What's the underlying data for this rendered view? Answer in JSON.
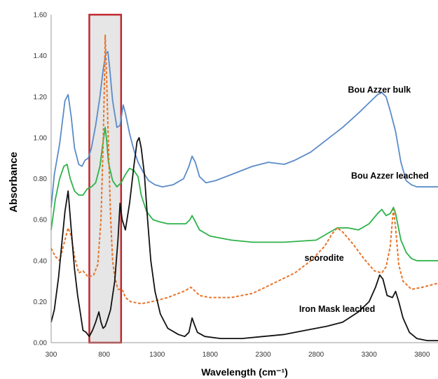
{
  "chart_data": {
    "type": "line",
    "xlabel": "Wavelength (cm⁻¹)",
    "ylabel": "Absorbance",
    "xlim": [
      300,
      3950
    ],
    "ylim": [
      0,
      1.6
    ],
    "x_ticks": [
      300,
      800,
      1300,
      1800,
      2300,
      2800,
      3300,
      3800
    ],
    "y_ticks": [
      0,
      0.2,
      0.4,
      0.6,
      0.8,
      1.0,
      1.2,
      1.4,
      1.6
    ],
    "x_tick_labels": [
      "300",
      "800",
      "1300",
      "1800",
      "2300",
      "2800",
      "3300",
      "3800"
    ],
    "y_tick_labels": [
      "0.00",
      "0.20",
      "0.40",
      "0.60",
      "0.80",
      "1.00",
      "1.20",
      "1.40",
      "1.60"
    ],
    "grid": false,
    "highlight_region": {
      "x_range": [
        660,
        960
      ],
      "y_range": [
        0,
        1.6
      ],
      "border_color": "#c0282d",
      "fill_color": "#e6e6e6"
    },
    "series": [
      {
        "name": "Bou Azzer bulk",
        "color": "#5b8bc9",
        "dashed": false,
        "points": [
          [
            300,
            0.66
          ],
          [
            330,
            0.82
          ],
          [
            380,
            0.97
          ],
          [
            430,
            1.18
          ],
          [
            460,
            1.21
          ],
          [
            490,
            1.1
          ],
          [
            520,
            0.95
          ],
          [
            560,
            0.87
          ],
          [
            590,
            0.86
          ],
          [
            620,
            0.89
          ],
          [
            650,
            0.9
          ],
          [
            680,
            0.95
          ],
          [
            720,
            1.06
          ],
          [
            760,
            1.2
          ],
          [
            790,
            1.33
          ],
          [
            815,
            1.41
          ],
          [
            835,
            1.42
          ],
          [
            850,
            1.35
          ],
          [
            880,
            1.18
          ],
          [
            920,
            1.05
          ],
          [
            950,
            1.06
          ],
          [
            980,
            1.16
          ],
          [
            1000,
            1.12
          ],
          [
            1040,
            1.02
          ],
          [
            1080,
            0.94
          ],
          [
            1120,
            0.88
          ],
          [
            1170,
            0.83
          ],
          [
            1220,
            0.79
          ],
          [
            1280,
            0.77
          ],
          [
            1350,
            0.76
          ],
          [
            1450,
            0.77
          ],
          [
            1550,
            0.8
          ],
          [
            1600,
            0.86
          ],
          [
            1630,
            0.91
          ],
          [
            1660,
            0.88
          ],
          [
            1700,
            0.81
          ],
          [
            1760,
            0.78
          ],
          [
            1850,
            0.79
          ],
          [
            2000,
            0.82
          ],
          [
            2200,
            0.86
          ],
          [
            2350,
            0.88
          ],
          [
            2500,
            0.87
          ],
          [
            2600,
            0.89
          ],
          [
            2750,
            0.93
          ],
          [
            2900,
            0.99
          ],
          [
            3050,
            1.05
          ],
          [
            3200,
            1.12
          ],
          [
            3300,
            1.17
          ],
          [
            3380,
            1.21
          ],
          [
            3420,
            1.22
          ],
          [
            3460,
            1.2
          ],
          [
            3500,
            1.13
          ],
          [
            3550,
            1.03
          ],
          [
            3600,
            0.88
          ],
          [
            3650,
            0.79
          ],
          [
            3700,
            0.77
          ],
          [
            3750,
            0.76
          ],
          [
            3800,
            0.76
          ],
          [
            3950,
            0.76
          ]
        ]
      },
      {
        "name": "Bou Azzer leached",
        "color": "#2db34a",
        "dashed": false,
        "points": [
          [
            300,
            0.55
          ],
          [
            340,
            0.7
          ],
          [
            380,
            0.8
          ],
          [
            420,
            0.86
          ],
          [
            450,
            0.87
          ],
          [
            480,
            0.8
          ],
          [
            520,
            0.74
          ],
          [
            560,
            0.72
          ],
          [
            600,
            0.72
          ],
          [
            640,
            0.75
          ],
          [
            680,
            0.76
          ],
          [
            720,
            0.78
          ],
          [
            760,
            0.86
          ],
          [
            790,
            0.98
          ],
          [
            810,
            1.05
          ],
          [
            825,
            0.98
          ],
          [
            840,
            0.88
          ],
          [
            880,
            0.79
          ],
          [
            920,
            0.76
          ],
          [
            960,
            0.78
          ],
          [
            1000,
            0.82
          ],
          [
            1040,
            0.85
          ],
          [
            1080,
            0.84
          ],
          [
            1120,
            0.81
          ],
          [
            1150,
            0.72
          ],
          [
            1200,
            0.64
          ],
          [
            1260,
            0.6
          ],
          [
            1320,
            0.59
          ],
          [
            1400,
            0.58
          ],
          [
            1500,
            0.58
          ],
          [
            1570,
            0.58
          ],
          [
            1610,
            0.6
          ],
          [
            1630,
            0.62
          ],
          [
            1660,
            0.59
          ],
          [
            1700,
            0.55
          ],
          [
            1800,
            0.52
          ],
          [
            2000,
            0.5
          ],
          [
            2200,
            0.49
          ],
          [
            2500,
            0.49
          ],
          [
            2800,
            0.5
          ],
          [
            2900,
            0.53
          ],
          [
            3000,
            0.56
          ],
          [
            3100,
            0.56
          ],
          [
            3200,
            0.55
          ],
          [
            3300,
            0.58
          ],
          [
            3380,
            0.63
          ],
          [
            3420,
            0.65
          ],
          [
            3460,
            0.62
          ],
          [
            3500,
            0.63
          ],
          [
            3530,
            0.66
          ],
          [
            3550,
            0.63
          ],
          [
            3600,
            0.5
          ],
          [
            3650,
            0.44
          ],
          [
            3700,
            0.41
          ],
          [
            3750,
            0.4
          ],
          [
            3800,
            0.4
          ],
          [
            3950,
            0.4
          ]
        ]
      },
      {
        "name": "scorodite",
        "color": "#e8742a",
        "dashed": true,
        "points": [
          [
            300,
            0.46
          ],
          [
            340,
            0.42
          ],
          [
            380,
            0.4
          ],
          [
            420,
            0.48
          ],
          [
            460,
            0.56
          ],
          [
            490,
            0.52
          ],
          [
            520,
            0.42
          ],
          [
            560,
            0.34
          ],
          [
            600,
            0.35
          ],
          [
            650,
            0.32
          ],
          [
            700,
            0.33
          ],
          [
            740,
            0.38
          ],
          [
            770,
            0.6
          ],
          [
            790,
            0.96
          ],
          [
            800,
            1.2
          ],
          [
            810,
            1.5
          ],
          [
            820,
            1.35
          ],
          [
            840,
            0.97
          ],
          [
            860,
            0.62
          ],
          [
            880,
            0.4
          ],
          [
            900,
            0.32
          ],
          [
            930,
            0.26
          ],
          [
            960,
            0.26
          ],
          [
            980,
            0.25
          ],
          [
            1000,
            0.22
          ],
          [
            1050,
            0.2
          ],
          [
            1150,
            0.19
          ],
          [
            1250,
            0.2
          ],
          [
            1400,
            0.22
          ],
          [
            1550,
            0.25
          ],
          [
            1620,
            0.27
          ],
          [
            1660,
            0.25
          ],
          [
            1700,
            0.23
          ],
          [
            1800,
            0.22
          ],
          [
            1900,
            0.22
          ],
          [
            2000,
            0.22
          ],
          [
            2200,
            0.24
          ],
          [
            2400,
            0.29
          ],
          [
            2600,
            0.34
          ],
          [
            2750,
            0.4
          ],
          [
            2880,
            0.47
          ],
          [
            2950,
            0.53
          ],
          [
            3000,
            0.56
          ],
          [
            3050,
            0.54
          ],
          [
            3150,
            0.48
          ],
          [
            3250,
            0.41
          ],
          [
            3350,
            0.35
          ],
          [
            3420,
            0.34
          ],
          [
            3460,
            0.37
          ],
          [
            3500,
            0.47
          ],
          [
            3520,
            0.6
          ],
          [
            3530,
            0.65
          ],
          [
            3550,
            0.56
          ],
          [
            3580,
            0.38
          ],
          [
            3620,
            0.3
          ],
          [
            3700,
            0.26
          ],
          [
            3800,
            0.27
          ],
          [
            3950,
            0.29
          ]
        ]
      },
      {
        "name": "Iron Mask leached",
        "color": "#111111",
        "dashed": false,
        "points": [
          [
            300,
            0.1
          ],
          [
            330,
            0.16
          ],
          [
            370,
            0.32
          ],
          [
            400,
            0.48
          ],
          [
            430,
            0.64
          ],
          [
            460,
            0.74
          ],
          [
            490,
            0.55
          ],
          [
            520,
            0.36
          ],
          [
            550,
            0.23
          ],
          [
            580,
            0.13
          ],
          [
            600,
            0.06
          ],
          [
            630,
            0.05
          ],
          [
            660,
            0.03
          ],
          [
            690,
            0.06
          ],
          [
            720,
            0.1
          ],
          [
            750,
            0.15
          ],
          [
            770,
            0.1
          ],
          [
            790,
            0.07
          ],
          [
            810,
            0.08
          ],
          [
            830,
            0.11
          ],
          [
            860,
            0.16
          ],
          [
            900,
            0.3
          ],
          [
            930,
            0.5
          ],
          [
            950,
            0.68
          ],
          [
            970,
            0.6
          ],
          [
            1000,
            0.55
          ],
          [
            1040,
            0.68
          ],
          [
            1080,
            0.86
          ],
          [
            1110,
            0.98
          ],
          [
            1130,
            1.0
          ],
          [
            1150,
            0.95
          ],
          [
            1180,
            0.82
          ],
          [
            1210,
            0.6
          ],
          [
            1240,
            0.4
          ],
          [
            1280,
            0.25
          ],
          [
            1330,
            0.14
          ],
          [
            1400,
            0.07
          ],
          [
            1500,
            0.04
          ],
          [
            1560,
            0.03
          ],
          [
            1600,
            0.05
          ],
          [
            1630,
            0.12
          ],
          [
            1650,
            0.09
          ],
          [
            1680,
            0.05
          ],
          [
            1750,
            0.03
          ],
          [
            1900,
            0.02
          ],
          [
            2100,
            0.02
          ],
          [
            2300,
            0.03
          ],
          [
            2500,
            0.04
          ],
          [
            2700,
            0.06
          ],
          [
            2900,
            0.08
          ],
          [
            3050,
            0.1
          ],
          [
            3200,
            0.15
          ],
          [
            3300,
            0.2
          ],
          [
            3360,
            0.27
          ],
          [
            3400,
            0.33
          ],
          [
            3430,
            0.31
          ],
          [
            3470,
            0.23
          ],
          [
            3520,
            0.22
          ],
          [
            3550,
            0.25
          ],
          [
            3580,
            0.2
          ],
          [
            3620,
            0.12
          ],
          [
            3680,
            0.05
          ],
          [
            3750,
            0.02
          ],
          [
            3850,
            0.01
          ],
          [
            3950,
            0.01
          ]
        ]
      }
    ],
    "annotations": [
      {
        "text": "Bou Azzer bulk",
        "x": 3100,
        "y": 1.22
      },
      {
        "text": "Bou Azzer leached",
        "x": 3130,
        "y": 0.8
      },
      {
        "text": "scorodite",
        "x": 2690,
        "y": 0.4
      },
      {
        "text": "Iron Mask leached",
        "x": 2640,
        "y": 0.15
      }
    ]
  }
}
